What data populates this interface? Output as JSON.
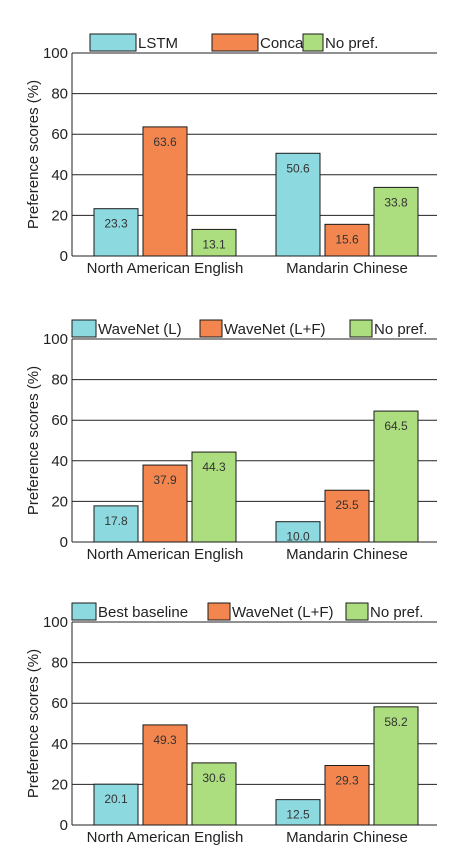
{
  "colors": {
    "series1": "#8dd9e0",
    "series2": "#f3864f",
    "series3": "#acdd7e",
    "grid": "#222222",
    "edge": "#1a1a1a"
  },
  "chart_data": [
    {
      "type": "bar",
      "ylabel": "Preference scores (%)",
      "ylim": [
        0,
        100
      ],
      "yticks": [
        0,
        20,
        40,
        60,
        80,
        100
      ],
      "categories": [
        "North American English",
        "Mandarin Chinese"
      ],
      "legend_position": "top",
      "grid": "horizontal",
      "series": [
        {
          "name": "LSTM",
          "values": [
            23.3,
            50.6
          ]
        },
        {
          "name": "Concat",
          "values": [
            63.6,
            15.6
          ]
        },
        {
          "name": "No pref.",
          "values": [
            13.1,
            33.8
          ]
        }
      ]
    },
    {
      "type": "bar",
      "ylabel": "Preference scores (%)",
      "ylim": [
        0,
        100
      ],
      "yticks": [
        0,
        20,
        40,
        60,
        80,
        100
      ],
      "categories": [
        "North American English",
        "Mandarin Chinese"
      ],
      "legend_position": "top",
      "grid": "horizontal",
      "series": [
        {
          "name": "WaveNet (L)",
          "values": [
            17.8,
            10.0
          ]
        },
        {
          "name": "WaveNet (L+F)",
          "values": [
            37.9,
            25.5
          ]
        },
        {
          "name": "No pref.",
          "values": [
            44.3,
            64.5
          ]
        }
      ]
    },
    {
      "type": "bar",
      "ylabel": "Preference scores (%)",
      "ylim": [
        0,
        100
      ],
      "yticks": [
        0,
        20,
        40,
        60,
        80,
        100
      ],
      "categories": [
        "North American English",
        "Mandarin Chinese"
      ],
      "legend_position": "top",
      "grid": "horizontal",
      "series": [
        {
          "name": "Best baseline",
          "values": [
            20.1,
            12.5
          ]
        },
        {
          "name": "WaveNet (L+F)",
          "values": [
            49.3,
            29.3
          ]
        },
        {
          "name": "No pref.",
          "values": [
            30.6,
            58.2
          ]
        }
      ]
    }
  ]
}
